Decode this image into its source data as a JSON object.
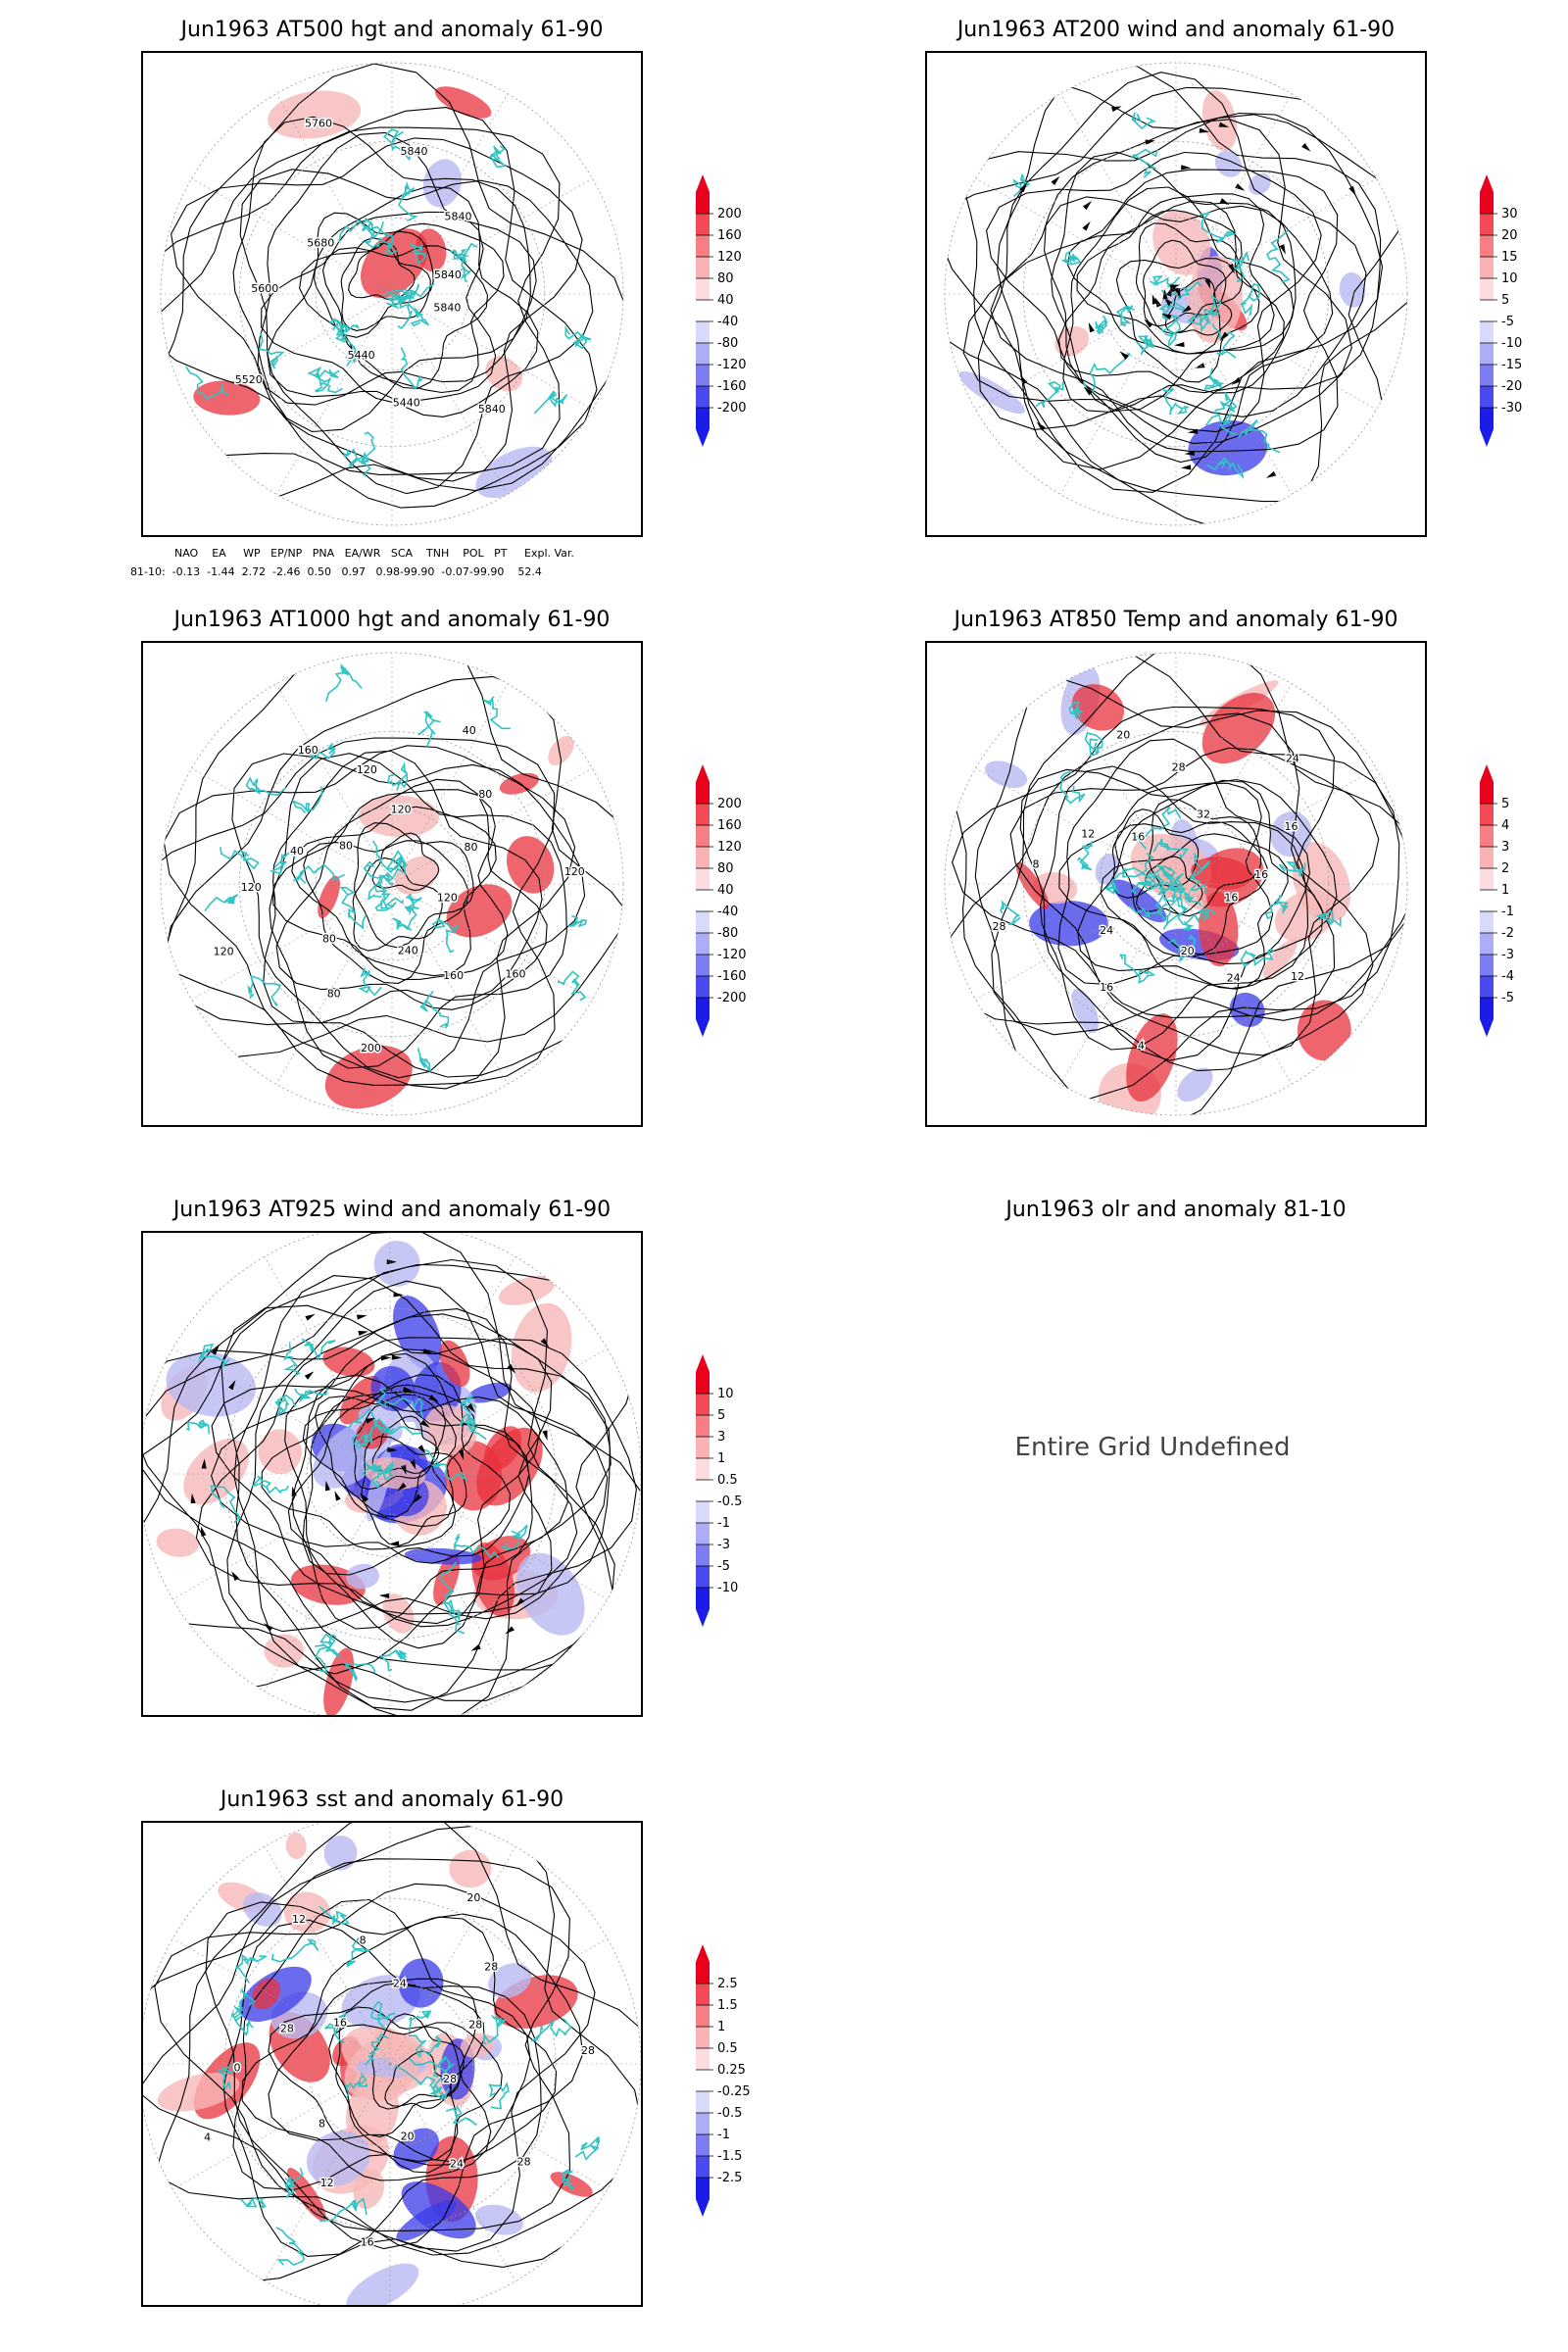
{
  "panels": [
    {
      "id": "p1",
      "title": "Jun1963 AT500 hgt and anomaly 61-90",
      "type": "hgt",
      "colorbar": [
        "200",
        "160",
        "120",
        "80",
        "40",
        "-40",
        "-80",
        "-120",
        "-160",
        "-200"
      ],
      "labels": [
        "5840",
        "5840",
        "5440",
        "5440",
        "5520",
        "5600",
        "5680",
        "5760",
        "5840",
        "5840",
        "5840"
      ]
    },
    {
      "id": "p2",
      "title": "Jun1963 AT200 wind and anomaly 61-90",
      "type": "wind",
      "colorbar": [
        "30",
        "20",
        "15",
        "10",
        "5",
        "-5",
        "-10",
        "-15",
        "-20",
        "-30"
      ],
      "labels": []
    },
    {
      "id": "p3",
      "title": "Jun1963 AT1000 hgt and anomaly 61-90",
      "type": "hgt",
      "colorbar": [
        "200",
        "160",
        "120",
        "80",
        "40",
        "-40",
        "-80",
        "-120",
        "-160",
        "-200"
      ],
      "labels": [
        "120",
        "160",
        "160",
        "240",
        "200",
        "80",
        "80",
        "120",
        "120",
        "40",
        "80",
        "160",
        "120",
        "120",
        "40",
        "80",
        "80",
        "120"
      ]
    },
    {
      "id": "p4",
      "title": "Jun1963 AT850 Temp and anomaly 61-90",
      "type": "temp",
      "colorbar": [
        "5",
        "4",
        "3",
        "2",
        "1",
        "-1",
        "-2",
        "-3",
        "-4",
        "-5"
      ],
      "labels": [
        "16",
        "12",
        "24",
        "20",
        "4",
        "16",
        "24",
        "28",
        "8",
        "12",
        "16",
        "20",
        "28",
        "32",
        "24",
        "16",
        "16"
      ]
    },
    {
      "id": "p5",
      "title": "Jun1963 AT925 wind and anomaly 61-90",
      "type": "wind925",
      "colorbar": [
        "10",
        "5",
        "3",
        "1",
        "0.5",
        "-0.5",
        "-1",
        "-3",
        "-5",
        "-10"
      ],
      "labels": []
    },
    {
      "id": "p6",
      "title": "Jun1963 olr and anomaly 81-10",
      "type": "undefined",
      "message": "Entire Grid Undefined"
    },
    {
      "id": "p7",
      "title": "Jun1963 sst and anomaly 61-90",
      "type": "sst",
      "colorbar": [
        "2.5",
        "1.5",
        "1",
        "0.5",
        "0.25",
        "-0.25",
        "-0.5",
        "-1",
        "-1.5",
        "-2.5"
      ],
      "labels": [
        "28",
        "28",
        "24",
        "20",
        "16",
        "12",
        "8",
        "4",
        "0",
        "28",
        "16",
        "12",
        "8",
        "24",
        "20",
        "28",
        "28",
        "28"
      ]
    }
  ],
  "indices": {
    "header": "NAO    EA     WP   EP/NP   PNA   EA/WR   SCA    TNH    POL   PT     Expl. Var.",
    "row": "81-10:  -0.13  -1.44  2.72  -2.46  0.50   0.97   0.98-99.90  -0.07-99.90    52.4"
  },
  "colors": {
    "coast": "#2ec4c4",
    "red": "#e8323c",
    "blue": "#3a3ae8",
    "lightred": "#f6b8b8",
    "lightblue": "#b9b9f2"
  }
}
